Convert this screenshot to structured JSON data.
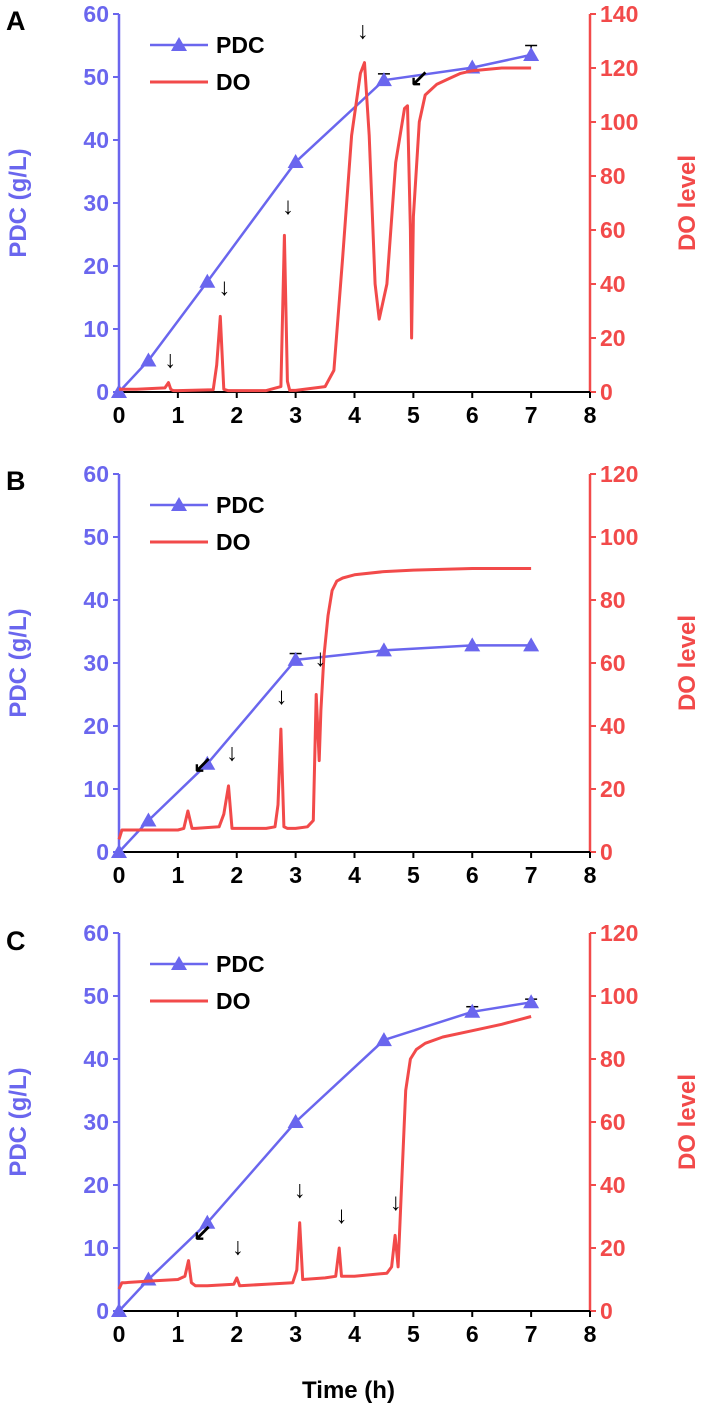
{
  "figure": {
    "x_axis_title": "Time (h)",
    "colors": {
      "pdc": "#6a66ee",
      "do": "#f24a4a",
      "axis_text": "#000000"
    }
  },
  "chart_data": [
    {
      "type": "line",
      "panel": "A",
      "legend": [
        "PDC",
        "DO"
      ],
      "xlabel": "",
      "xlim": [
        0,
        8
      ],
      "x_ticks": [
        "0",
        "1",
        "2",
        "3",
        "4",
        "5",
        "6",
        "7",
        "8"
      ],
      "ylabel_left": "PDC (g/L)",
      "ylim_left": [
        0,
        60
      ],
      "y_ticks_left": [
        "0",
        "10",
        "20",
        "30",
        "40",
        "50",
        "60"
      ],
      "ylabel_right": "DO level",
      "ylim_right": [
        0,
        140
      ],
      "y_ticks_right": [
        "0",
        "20",
        "40",
        "60",
        "80",
        "100",
        "120",
        "140"
      ],
      "series": [
        {
          "name": "PDC",
          "axis": "left",
          "marker": "triangle",
          "x": [
            0,
            0.5,
            1.5,
            3,
            4.5,
            6,
            7
          ],
          "values": [
            0,
            5,
            17.5,
            36.5,
            49.5,
            51.5,
            53.5
          ],
          "errors": [
            0,
            0,
            0,
            0,
            1,
            0,
            1.5
          ]
        },
        {
          "name": "DO",
          "axis": "right",
          "x": [
            0,
            0.1,
            0.3,
            0.78,
            0.84,
            0.88,
            0.92,
            1.0,
            1.6,
            1.66,
            1.72,
            1.78,
            1.85,
            2.5,
            2.75,
            2.81,
            2.86,
            2.9,
            3.0,
            3.5,
            3.65,
            3.8,
            3.95,
            4.1,
            4.17,
            4.25,
            4.35,
            4.42,
            4.55,
            4.7,
            4.85,
            4.9,
            4.95,
            4.97,
            5.0,
            5.1,
            5.2,
            5.4,
            5.6,
            5.8,
            6.0,
            6.5,
            7.0
          ],
          "values": [
            1,
            1,
            1,
            1.5,
            3.5,
            1,
            0.5,
            0.5,
            0.8,
            10,
            28,
            1,
            0.5,
            0.5,
            2,
            58,
            4,
            0.6,
            0.6,
            2,
            8,
            50,
            95,
            118,
            122,
            95,
            40,
            27,
            40,
            85,
            105,
            106,
            60,
            20,
            65,
            100,
            110,
            114,
            116,
            118,
            119,
            120,
            120
          ]
        }
      ],
      "annotations": [
        {
          "label": "↓",
          "x": 0.87,
          "y_right": 9
        },
        {
          "label": "↓",
          "x": 1.79,
          "y_right": 36
        },
        {
          "label": "↓",
          "x": 2.87,
          "y_right": 66
        },
        {
          "label": "↓",
          "x": 4.14,
          "y_right": 131
        },
        {
          "label": "↙",
          "x": 5.1,
          "y_right": 113
        }
      ]
    },
    {
      "type": "line",
      "panel": "B",
      "legend": [
        "PDC",
        "DO"
      ],
      "xlabel": "",
      "xlim": [
        0,
        8
      ],
      "x_ticks": [
        "0",
        "1",
        "2",
        "3",
        "4",
        "5",
        "6",
        "7",
        "8"
      ],
      "ylabel_left": "PDC (g/L)",
      "ylim_left": [
        0,
        60
      ],
      "y_ticks_left": [
        "0",
        "10",
        "20",
        "30",
        "40",
        "50",
        "60"
      ],
      "ylabel_right": "DO level",
      "ylim_right": [
        0,
        120
      ],
      "y_ticks_right": [
        "0",
        "20",
        "40",
        "60",
        "80",
        "100",
        "120"
      ],
      "series": [
        {
          "name": "PDC",
          "axis": "left",
          "marker": "triangle",
          "x": [
            0,
            0.5,
            1.5,
            3,
            4.5,
            6,
            7
          ],
          "values": [
            0,
            5,
            14,
            30.5,
            32,
            32.8,
            32.8
          ],
          "errors": [
            0,
            0,
            0,
            1,
            0,
            0,
            0
          ]
        },
        {
          "name": "DO",
          "axis": "right",
          "x": [
            0,
            0.05,
            0.1,
            0.5,
            1.0,
            1.1,
            1.17,
            1.24,
            1.3,
            1.7,
            1.78,
            1.86,
            1.92,
            2.0,
            2.5,
            2.65,
            2.7,
            2.75,
            2.8,
            2.86,
            3.0,
            3.2,
            3.3,
            3.35,
            3.4,
            3.43,
            3.48,
            3.55,
            3.62,
            3.7,
            3.8,
            4.0,
            4.5,
            5.0,
            6.0,
            7.0
          ],
          "values": [
            4,
            7,
            7,
            7,
            7,
            7.5,
            13,
            7.5,
            7.5,
            8,
            12,
            21,
            7.5,
            7.5,
            7.5,
            8,
            15,
            39,
            8,
            7.5,
            7.5,
            8,
            10,
            50,
            29,
            45,
            62,
            75,
            83,
            86,
            87,
            88,
            89,
            89.5,
            90,
            90
          ]
        }
      ],
      "annotations": [
        {
          "label": "↙",
          "x": 1.42,
          "y_right": 25
        },
        {
          "label": "↓",
          "x": 1.92,
          "y_right": 29
        },
        {
          "label": "↓",
          "x": 2.76,
          "y_right": 47
        },
        {
          "label": "↓",
          "x": 3.42,
          "y_right": 59
        }
      ]
    },
    {
      "type": "line",
      "panel": "C",
      "legend": [
        "PDC",
        "DO"
      ],
      "xlabel": "Time (h)",
      "xlim": [
        0,
        8
      ],
      "x_ticks": [
        "0",
        "1",
        "2",
        "3",
        "4",
        "5",
        "6",
        "7",
        "8"
      ],
      "ylabel_left": "PDC (g/L)",
      "ylim_left": [
        0,
        60
      ],
      "y_ticks_left": [
        "0",
        "10",
        "20",
        "30",
        "40",
        "50",
        "60"
      ],
      "ylabel_right": "DO level",
      "ylim_right": [
        0,
        120
      ],
      "y_ticks_right": [
        "0",
        "20",
        "40",
        "60",
        "80",
        "100",
        "120"
      ],
      "series": [
        {
          "name": "PDC",
          "axis": "left",
          "marker": "triangle",
          "x": [
            0,
            0.5,
            1.5,
            3,
            4.5,
            6,
            7
          ],
          "values": [
            0,
            5,
            14,
            30,
            43,
            47.5,
            49
          ],
          "errors": [
            0,
            0,
            0,
            0,
            0,
            0.8,
            0.5
          ]
        },
        {
          "name": "DO",
          "axis": "right",
          "x": [
            0,
            0.05,
            0.1,
            0.5,
            1.0,
            1.12,
            1.18,
            1.23,
            1.3,
            1.5,
            1.95,
            2.0,
            2.05,
            2.5,
            2.95,
            3.02,
            3.07,
            3.12,
            3.5,
            3.68,
            3.74,
            3.78,
            4.0,
            4.55,
            4.63,
            4.69,
            4.74,
            4.8,
            4.87,
            4.95,
            5.05,
            5.2,
            5.5,
            6.0,
            6.5,
            7.0
          ],
          "values": [
            7,
            9,
            9,
            9.5,
            10,
            11,
            16,
            9,
            8,
            8,
            8.5,
            10.5,
            8,
            8.5,
            9,
            13,
            28,
            10,
            10.5,
            11,
            20,
            11,
            11,
            12,
            14,
            24,
            14,
            40,
            70,
            80,
            83,
            85,
            87,
            89,
            91,
            93.5
          ]
        }
      ],
      "annotations": [
        {
          "label": "↙",
          "x": 1.42,
          "y_right": 22
        },
        {
          "label": "↓",
          "x": 2.02,
          "y_right": 18
        },
        {
          "label": "↓",
          "x": 3.07,
          "y_right": 36
        },
        {
          "label": "↓",
          "x": 3.78,
          "y_right": 28
        },
        {
          "label": "↓",
          "x": 4.7,
          "y_right": 32
        }
      ]
    }
  ]
}
